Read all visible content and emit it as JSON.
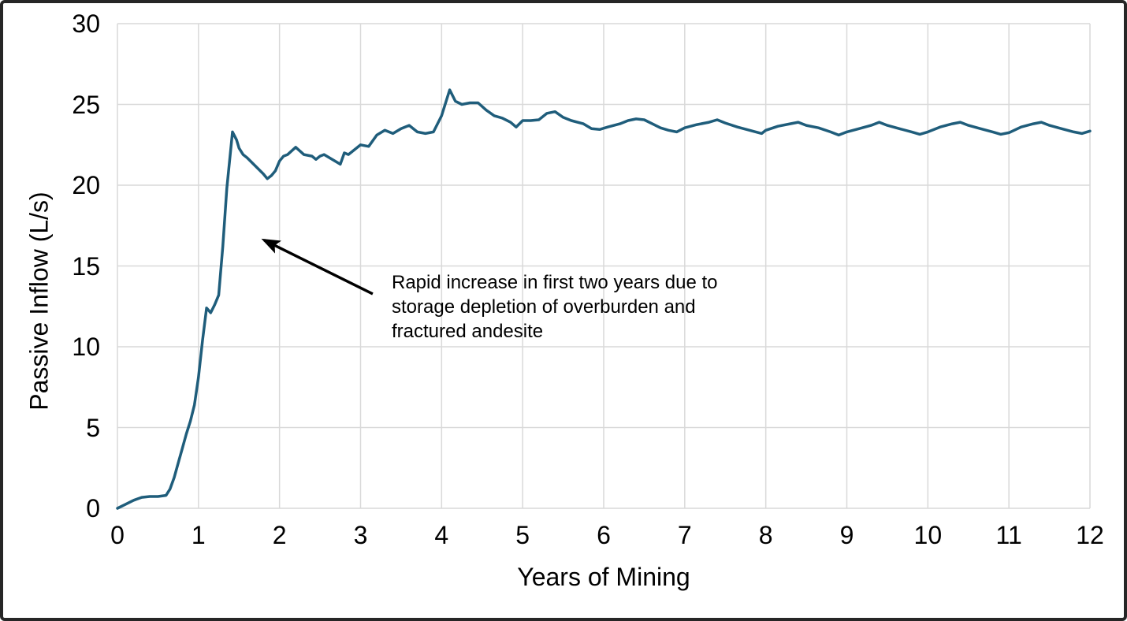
{
  "colors": {
    "line": "#1F5D7B",
    "grid": "#D9D9D9",
    "border": "#262626",
    "text": "#000000",
    "background": "#FFFFFF"
  },
  "chart_data": {
    "type": "line",
    "title": "",
    "xlabel": "Years of Mining",
    "ylabel": "Passive Inflow (L/s)",
    "xlim": [
      0,
      12
    ],
    "ylim": [
      0,
      30
    ],
    "x_ticks": [
      0,
      1,
      2,
      3,
      4,
      5,
      6,
      7,
      8,
      9,
      10,
      11,
      12
    ],
    "y_ticks": [
      0,
      5,
      10,
      15,
      20,
      25,
      30
    ],
    "grid": true,
    "legend": "none",
    "line_color": "#1F5D7B",
    "grid_color": "#D9D9D9",
    "series": [
      {
        "name": "Passive Inflow",
        "points": [
          [
            0,
            0
          ],
          [
            0.1,
            0.25
          ],
          [
            0.2,
            0.5
          ],
          [
            0.3,
            0.68
          ],
          [
            0.4,
            0.73
          ],
          [
            0.5,
            0.73
          ],
          [
            0.6,
            0.8
          ],
          [
            0.65,
            1.2
          ],
          [
            0.7,
            1.9
          ],
          [
            0.75,
            2.8
          ],
          [
            0.8,
            3.7
          ],
          [
            0.85,
            4.6
          ],
          [
            0.9,
            5.4
          ],
          [
            0.95,
            6.4
          ],
          [
            1,
            8.1
          ],
          [
            1.05,
            10.4
          ],
          [
            1.1,
            12.4
          ],
          [
            1.15,
            12.1
          ],
          [
            1.2,
            12.6
          ],
          [
            1.25,
            13.2
          ],
          [
            1.3,
            16.2
          ],
          [
            1.35,
            19.8
          ],
          [
            1.42,
            23.3
          ],
          [
            1.47,
            22.8
          ],
          [
            1.5,
            22.3
          ],
          [
            1.55,
            21.9
          ],
          [
            1.6,
            21.7
          ],
          [
            1.7,
            21.2
          ],
          [
            1.8,
            20.7
          ],
          [
            1.85,
            20.4
          ],
          [
            1.9,
            20.6
          ],
          [
            1.95,
            20.9
          ],
          [
            2,
            21.5
          ],
          [
            2.05,
            21.8
          ],
          [
            2.1,
            21.9
          ],
          [
            2.2,
            22.35
          ],
          [
            2.3,
            21.9
          ],
          [
            2.4,
            21.8
          ],
          [
            2.45,
            21.6
          ],
          [
            2.5,
            21.8
          ],
          [
            2.55,
            21.9
          ],
          [
            2.65,
            21.6
          ],
          [
            2.75,
            21.3
          ],
          [
            2.8,
            22
          ],
          [
            2.85,
            21.9
          ],
          [
            2.95,
            22.3
          ],
          [
            3,
            22.5
          ],
          [
            3.1,
            22.4
          ],
          [
            3.2,
            23.1
          ],
          [
            3.3,
            23.4
          ],
          [
            3.4,
            23.2
          ],
          [
            3.5,
            23.5
          ],
          [
            3.6,
            23.7
          ],
          [
            3.7,
            23.3
          ],
          [
            3.8,
            23.2
          ],
          [
            3.9,
            23.3
          ],
          [
            4,
            24.3
          ],
          [
            4.1,
            25.9
          ],
          [
            4.17,
            25.2
          ],
          [
            4.25,
            25
          ],
          [
            4.35,
            25.1
          ],
          [
            4.45,
            25.1
          ],
          [
            4.55,
            24.65
          ],
          [
            4.65,
            24.3
          ],
          [
            4.75,
            24.15
          ],
          [
            4.85,
            23.9
          ],
          [
            4.92,
            23.6
          ],
          [
            5,
            24
          ],
          [
            5.1,
            24
          ],
          [
            5.2,
            24.05
          ],
          [
            5.3,
            24.45
          ],
          [
            5.4,
            24.55
          ],
          [
            5.5,
            24.2
          ],
          [
            5.6,
            24
          ],
          [
            5.75,
            23.8
          ],
          [
            5.85,
            23.5
          ],
          [
            5.95,
            23.45
          ],
          [
            6.05,
            23.6
          ],
          [
            6.2,
            23.8
          ],
          [
            6.3,
            24
          ],
          [
            6.4,
            24.1
          ],
          [
            6.5,
            24.05
          ],
          [
            6.6,
            23.8
          ],
          [
            6.7,
            23.55
          ],
          [
            6.8,
            23.4
          ],
          [
            6.9,
            23.3
          ],
          [
            7,
            23.55
          ],
          [
            7.15,
            23.75
          ],
          [
            7.3,
            23.9
          ],
          [
            7.4,
            24.05
          ],
          [
            7.5,
            23.85
          ],
          [
            7.65,
            23.6
          ],
          [
            7.8,
            23.4
          ],
          [
            7.95,
            23.2
          ],
          [
            8,
            23.4
          ],
          [
            8.15,
            23.65
          ],
          [
            8.3,
            23.8
          ],
          [
            8.4,
            23.9
          ],
          [
            8.5,
            23.7
          ],
          [
            8.65,
            23.55
          ],
          [
            8.8,
            23.3
          ],
          [
            8.9,
            23.1
          ],
          [
            9,
            23.3
          ],
          [
            9.15,
            23.5
          ],
          [
            9.3,
            23.7
          ],
          [
            9.4,
            23.9
          ],
          [
            9.5,
            23.7
          ],
          [
            9.65,
            23.5
          ],
          [
            9.8,
            23.3
          ],
          [
            9.9,
            23.15
          ],
          [
            10,
            23.3
          ],
          [
            10.15,
            23.6
          ],
          [
            10.3,
            23.8
          ],
          [
            10.4,
            23.9
          ],
          [
            10.5,
            23.7
          ],
          [
            10.65,
            23.5
          ],
          [
            10.8,
            23.3
          ],
          [
            10.9,
            23.15
          ],
          [
            11,
            23.25
          ],
          [
            11.15,
            23.6
          ],
          [
            11.3,
            23.8
          ],
          [
            11.4,
            23.9
          ],
          [
            11.5,
            23.7
          ],
          [
            11.65,
            23.5
          ],
          [
            11.8,
            23.3
          ],
          [
            11.9,
            23.2
          ],
          [
            12,
            23.35
          ]
        ]
      }
    ],
    "annotation": {
      "lines": [
        "Rapid increase in first two years due to",
        "storage depletion of overburden and",
        "fractured andesite"
      ],
      "arrow_from_xy": [
        3.15,
        13.27
      ],
      "arrow_to_xy": [
        1.81,
        16.6
      ]
    }
  }
}
